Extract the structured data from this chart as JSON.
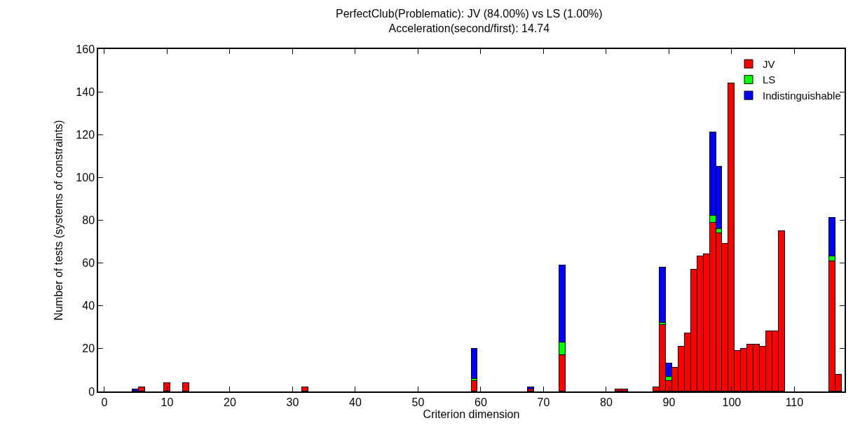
{
  "chart_data": {
    "type": "bar",
    "stacked": true,
    "title": "PerfectClub(Problematic): JV (84.00%) vs LS (1.00%)",
    "subtitle": "Acceleration(second/first): 14.74",
    "xlabel": "Criterion dimension",
    "ylabel": "Number of tests (systems of constraints)",
    "x": [
      5,
      6,
      10,
      13,
      32,
      59,
      68,
      73,
      82,
      83,
      88,
      89,
      90,
      91,
      92,
      93,
      94,
      95,
      96,
      97,
      98,
      99,
      100,
      101,
      102,
      103,
      104,
      105,
      106,
      107,
      108,
      116,
      117
    ],
    "series": [
      {
        "name": "JV",
        "color": "#ff0000",
        "values": [
          null,
          2,
          4,
          4,
          2,
          5,
          1,
          17,
          1,
          1,
          2,
          31,
          5,
          11,
          21,
          27,
          57,
          63,
          64,
          79,
          74,
          69,
          144,
          19,
          20,
          22,
          22,
          21,
          28,
          28,
          75,
          61,
          8
        ]
      },
      {
        "name": "LS",
        "color": "#00ff00",
        "values": [
          null,
          null,
          null,
          null,
          null,
          1,
          null,
          6,
          null,
          null,
          null,
          1,
          2,
          null,
          null,
          null,
          null,
          null,
          null,
          3,
          2,
          null,
          null,
          null,
          null,
          null,
          null,
          null,
          null,
          null,
          null,
          2,
          null
        ]
      },
      {
        "name": "Indistinguishable",
        "color": "#0000ff",
        "values": [
          1,
          null,
          null,
          null,
          null,
          14,
          1,
          36,
          null,
          null,
          null,
          26,
          6,
          null,
          null,
          null,
          null,
          null,
          null,
          39,
          29,
          null,
          null,
          null,
          null,
          null,
          null,
          null,
          null,
          null,
          null,
          18,
          null
        ]
      }
    ],
    "xlim": [
      -1,
      118
    ],
    "xticks": [
      0,
      10,
      20,
      30,
      40,
      50,
      60,
      70,
      80,
      90,
      100,
      110
    ],
    "ylim": [
      0,
      160
    ],
    "yticks": [
      0,
      20,
      40,
      60,
      80,
      100,
      120,
      140,
      160
    ],
    "legend": "top right"
  }
}
